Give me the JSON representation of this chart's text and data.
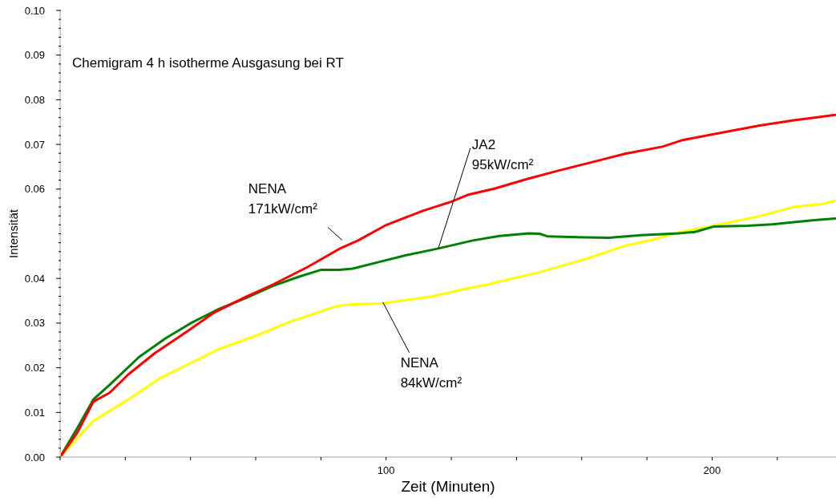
{
  "chart_data": {
    "type": "line",
    "title": "Chemigram 4 h isotherme Ausgasung bei RT",
    "xlabel": "Zeit (Minuten)",
    "ylabel": "Intensität",
    "annotations": [
      {
        "text": "NENA 171kW/cm²",
        "x": 87,
        "y": 0.0475
      },
      {
        "text": "JA2 95kW/cm²",
        "x": 116,
        "y": 0.0467
      },
      {
        "text": "NENA 84kW/cm²",
        "x": 99,
        "y": 0.0347
      }
    ],
    "xlim": [
      0,
      238
    ],
    "ylim": [
      0,
      0.1
    ],
    "xticks": [
      {
        "value": 0,
        "label": null
      },
      {
        "value": 20,
        "label": null
      },
      {
        "value": 40,
        "label": null
      },
      {
        "value": 60,
        "label": null
      },
      {
        "value": 80,
        "label": null
      },
      100,
      {
        "value": 120,
        "label": null
      },
      {
        "value": 140,
        "label": null
      },
      {
        "value": 160,
        "label": null
      },
      {
        "value": 180,
        "label": null
      },
      200,
      {
        "value": 220,
        "label": null
      }
    ],
    "yticks": [
      {
        "value": 0,
        "label": "0.00"
      },
      {
        "value": 0.002,
        "label": null
      },
      {
        "value": 0.004,
        "label": null
      },
      {
        "value": 0.006,
        "label": null
      },
      {
        "value": 0.008,
        "label": null
      },
      0.01,
      {
        "value": 0.012,
        "label": null
      },
      {
        "value": 0.014,
        "label": null
      },
      {
        "value": 0.016,
        "label": null
      },
      {
        "value": 0.018,
        "label": null
      },
      0.02,
      {
        "value": 0.022,
        "label": null
      },
      {
        "value": 0.024,
        "label": null
      },
      {
        "value": 0.026,
        "label": null
      },
      {
        "value": 0.028,
        "label": null
      },
      0.03,
      {
        "value": 0.032,
        "label": null
      },
      {
        "value": 0.034,
        "label": null
      },
      {
        "value": 0.036,
        "label": null
      },
      {
        "value": 0.038,
        "label": null
      },
      0.04,
      {
        "value": 0.042,
        "label": null
      },
      {
        "value": 0.044,
        "label": null
      },
      {
        "value": 0.046,
        "label": null
      },
      {
        "value": 0.048,
        "label": null
      },
      {
        "value": 0.05,
        "label": null
      },
      {
        "value": 0.052,
        "label": null
      },
      {
        "value": 0.054,
        "label": null
      },
      {
        "value": 0.056,
        "label": null
      },
      {
        "value": 0.058,
        "label": null
      },
      0.06,
      {
        "value": 0.062,
        "label": null
      },
      {
        "value": 0.064,
        "label": null
      },
      {
        "value": 0.066,
        "label": null
      },
      {
        "value": 0.068,
        "label": null
      },
      0.07,
      {
        "value": 0.072,
        "label": null
      },
      {
        "value": 0.074,
        "label": null
      },
      {
        "value": 0.076,
        "label": null
      },
      {
        "value": 0.078,
        "label": null
      },
      0.08,
      {
        "value": 0.082,
        "label": null
      },
      {
        "value": 0.084,
        "label": null
      },
      {
        "value": 0.086,
        "label": null
      },
      {
        "value": 0.088,
        "label": null
      },
      0.09,
      {
        "value": 0.092,
        "label": null
      },
      {
        "value": 0.094,
        "label": null
      },
      {
        "value": 0.096,
        "label": null
      },
      {
        "value": 0.098,
        "label": null
      },
      {
        "value": 0.1,
        "label": "0.10"
      }
    ],
    "marker": "none",
    "series": [
      {
        "color": "#ffff00",
        "x": [
          0,
          5.3,
          10.2,
          20.9,
          30.7,
          38.9,
          48.8,
          60.2,
          70.1,
          75,
          84.8,
          89.7,
          98.8,
          104.5,
          114.3,
          122.5,
          130.7,
          138.9,
          147.1,
          153.7,
          161,
          173.3,
          181.5,
          189.7,
          200.4,
          214.3,
          225,
          234,
          237.7
        ],
        "values": [
          0,
          0.0042,
          0.0081,
          0.0129,
          0.0177,
          0.0206,
          0.0242,
          0.0272,
          0.0302,
          0.0314,
          0.0338,
          0.0342,
          0.0344,
          0.035,
          0.036,
          0.0374,
          0.0386,
          0.04,
          0.0414,
          0.0428,
          0.0443,
          0.0473,
          0.0486,
          0.0503,
          0.0518,
          0.0539,
          0.056,
          0.0567,
          0.0574
        ]
      },
      {
        "color": "#008000",
        "x": [
          0,
          5.3,
          10.2,
          15.2,
          24.2,
          32.4,
          40.6,
          48.8,
          57,
          65.2,
          73.3,
          79.9,
          85.6,
          89.7,
          97.9,
          106.1,
          116,
          126.6,
          134.8,
          143.8,
          147.1,
          149.6,
          161,
          168.4,
          178.3,
          189.7,
          194.7,
          200.4,
          211,
          218.4,
          230.7,
          237.7
        ],
        "values": [
          0,
          0.0065,
          0.0129,
          0.0162,
          0.0224,
          0.0266,
          0.0302,
          0.0332,
          0.0356,
          0.0383,
          0.0404,
          0.0419,
          0.0419,
          0.0422,
          0.0437,
          0.0452,
          0.0467,
          0.0485,
          0.0495,
          0.0501,
          0.05,
          0.0494,
          0.0492,
          0.0491,
          0.0497,
          0.0501,
          0.0504,
          0.0516,
          0.0518,
          0.0521,
          0.053,
          0.0534
        ]
      },
      {
        "color": "#ff0000",
        "x": [
          0,
          5.3,
          10.2,
          15.2,
          20.9,
          29.1,
          38.9,
          47.1,
          57,
          65.2,
          75.8,
          85.6,
          91.4,
          99.6,
          111.1,
          120.1,
          125,
          133.2,
          143,
          153.7,
          165.2,
          173.3,
          184.8,
          190.6,
          201.2,
          214.3,
          225,
          237.7
        ],
        "values": [
          0,
          0.0055,
          0.0124,
          0.0144,
          0.0185,
          0.0233,
          0.0281,
          0.0323,
          0.0359,
          0.0386,
          0.0425,
          0.0466,
          0.0485,
          0.0518,
          0.0551,
          0.0572,
          0.0587,
          0.0601,
          0.0622,
          0.0643,
          0.0664,
          0.0679,
          0.0695,
          0.0709,
          0.0724,
          0.0742,
          0.0754,
          0.0766
        ]
      }
    ]
  }
}
